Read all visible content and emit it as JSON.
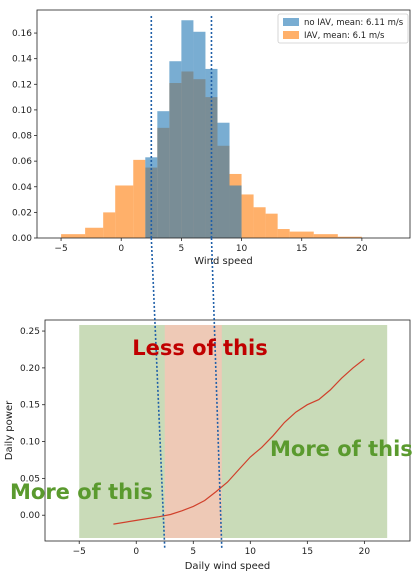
{
  "chart_data": [
    {
      "type": "histogram",
      "xlabel": "Wind speed",
      "ylabel": "",
      "xlim": [
        -7,
        24
      ],
      "ylim": [
        0,
        0.178
      ],
      "xticks": [
        -5,
        0,
        5,
        10,
        15,
        20
      ],
      "yticks": [
        0.0,
        0.02,
        0.04,
        0.06,
        0.08,
        0.1,
        0.12,
        0.14,
        0.16
      ],
      "legend_position": "top-right",
      "series": [
        {
          "name": "no IAV, mean: 6.11 m/s",
          "color": "#1f77b4",
          "bins": [
            [
              2.0,
              3.0,
              0.063
            ],
            [
              3.0,
              4.0,
              0.099
            ],
            [
              4.0,
              5.0,
              0.138
            ],
            [
              5.0,
              6.0,
              0.17
            ],
            [
              6.0,
              7.0,
              0.161
            ],
            [
              7.0,
              8.0,
              0.132
            ],
            [
              8.0,
              9.0,
              0.09
            ],
            [
              9.0,
              10.0,
              0.041
            ]
          ]
        },
        {
          "name": "IAV, mean: 6.1 m/s",
          "color": "#ff7f0e",
          "bins": [
            [
              -5.0,
              -3.0,
              0.003
            ],
            [
              -3.0,
              -1.5,
              0.008
            ],
            [
              -1.5,
              -0.5,
              0.02
            ],
            [
              -0.5,
              1.0,
              0.041
            ],
            [
              1.0,
              2.0,
              0.061
            ],
            [
              2.0,
              3.0,
              0.055
            ],
            [
              3.0,
              4.0,
              0.086
            ],
            [
              4.0,
              5.0,
              0.121
            ],
            [
              5.0,
              6.0,
              0.13
            ],
            [
              6.0,
              7.0,
              0.124
            ],
            [
              7.0,
              8.0,
              0.11
            ],
            [
              8.0,
              9.0,
              0.072
            ],
            [
              9.0,
              10.0,
              0.05
            ],
            [
              10.0,
              11.0,
              0.034
            ],
            [
              11.0,
              12.0,
              0.024
            ],
            [
              12.0,
              13.0,
              0.019
            ],
            [
              13.0,
              14.0,
              0.007
            ],
            [
              14.0,
              16.0,
              0.005
            ],
            [
              16.0,
              18.0,
              0.003
            ],
            [
              18.0,
              20.0,
              0.001
            ]
          ]
        }
      ]
    },
    {
      "type": "line",
      "xlabel": "Daily wind speed",
      "ylabel": "Daily power",
      "xlim": [
        -8,
        24
      ],
      "ylim": [
        -0.035,
        0.265
      ],
      "xticks": [
        -5,
        0,
        5,
        10,
        15,
        20
      ],
      "yticks": [
        0.0,
        0.05,
        0.1,
        0.15,
        0.2,
        0.25
      ],
      "shaded_regions": [
        {
          "x_range": [
            -5,
            22
          ],
          "color": "#c9dbb8"
        },
        {
          "x_range": [
            2.5,
            7.5
          ],
          "color": "#eec9b6"
        }
      ],
      "series": [
        {
          "color": "#d0402b",
          "x": [
            -2,
            0,
            2,
            3,
            4,
            5,
            6,
            7,
            8,
            9,
            10,
            11,
            12,
            13,
            14,
            15,
            16,
            17,
            18,
            19,
            20
          ],
          "y": [
            -0.012,
            -0.007,
            -0.002,
            0.001,
            0.006,
            0.012,
            0.02,
            0.032,
            0.045,
            0.062,
            0.079,
            0.092,
            0.108,
            0.126,
            0.14,
            0.15,
            0.157,
            0.17,
            0.186,
            0.2,
            0.212
          ]
        }
      ]
    }
  ],
  "dividers": {
    "x_values": [
      2.5,
      7.5
    ],
    "color": "#1f5fa8"
  },
  "annotations": {
    "less": "Less of this",
    "more_left": "More of this",
    "more_right": "More of this"
  }
}
